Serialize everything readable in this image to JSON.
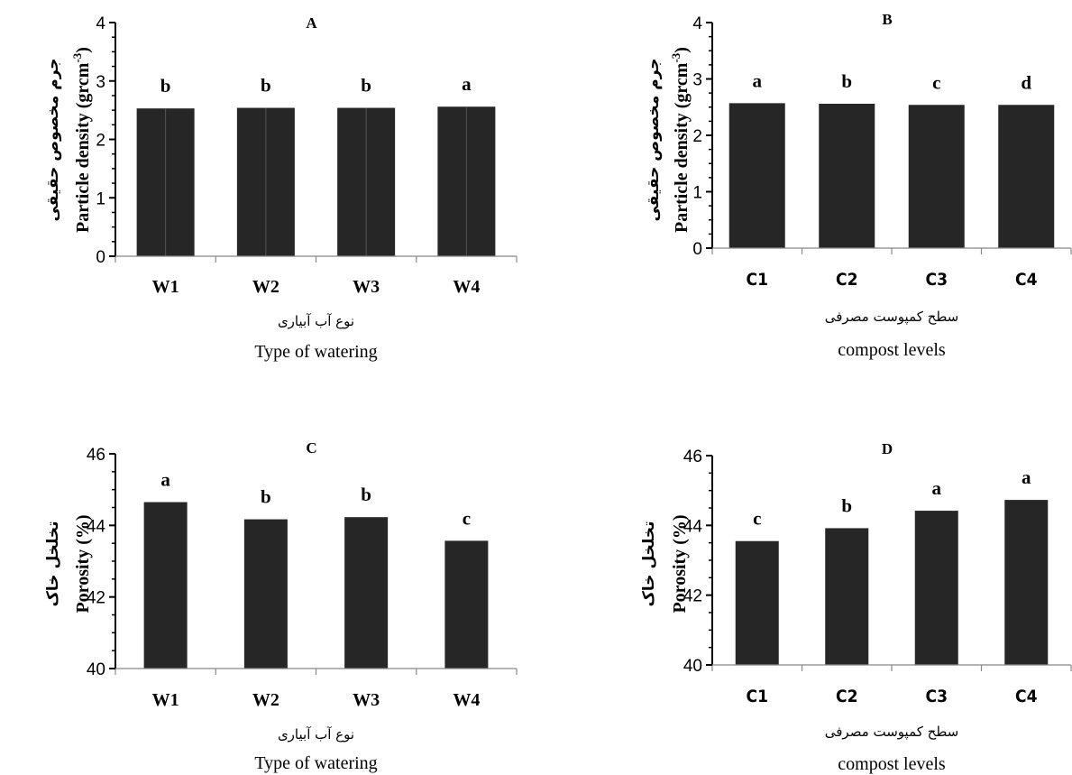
{
  "chart_data": [
    {
      "type": "bar",
      "title": "A",
      "categories": [
        "W1",
        "W2",
        "W3",
        "W4"
      ],
      "values": [
        2.53,
        2.54,
        2.54,
        2.56
      ],
      "letters": [
        "b",
        "b",
        "b",
        "a"
      ],
      "ylim": [
        0,
        4
      ],
      "yticks": [
        0,
        1,
        2,
        3,
        4
      ],
      "ylabel_fa": "جرم مخصوص حقیقی",
      "ylabel_en": "Particle density (grcm",
      "ylabel_sup": "-3",
      "ylabel_end": ")",
      "xlabel_fa": "نوع آب آبیاری",
      "xlabel_en": "Type of watering",
      "bar_color": "#262626"
    },
    {
      "type": "bar",
      "title": "B",
      "categories": [
        "C1",
        "C2",
        "C3",
        "C4"
      ],
      "values": [
        2.57,
        2.56,
        2.54,
        2.54
      ],
      "letters": [
        "a",
        "b",
        "c",
        "d"
      ],
      "ylim": [
        0,
        4
      ],
      "yticks": [
        0,
        1,
        2,
        3,
        4
      ],
      "ylabel_fa": "جرم مخصوص حقیقی",
      "ylabel_en": "Particle density (grcm",
      "ylabel_sup": "-3",
      "ylabel_end": ")",
      "xlabel_fa": "سطح کمپوست مصرفی",
      "xlabel_en": "compost levels",
      "bar_color": "#262626"
    },
    {
      "type": "bar",
      "title": "C",
      "categories": [
        "W1",
        "W2",
        "W3",
        "W4"
      ],
      "values": [
        44.65,
        44.17,
        44.23,
        43.57
      ],
      "letters": [
        "a",
        "b",
        "b",
        "c"
      ],
      "ylim": [
        40,
        46
      ],
      "yticks": [
        40,
        42,
        44,
        46
      ],
      "ylabel_fa": "تخلخل خاک",
      "ylabel_en": "Porosity (%)",
      "xlabel_fa": "نوع آب آبیاری",
      "xlabel_en": "Type of watering",
      "bar_color": "#262626"
    },
    {
      "type": "bar",
      "title": "D",
      "categories": [
        "C1",
        "C2",
        "C3",
        "C4"
      ],
      "values": [
        43.55,
        43.92,
        44.42,
        44.73
      ],
      "letters": [
        "c",
        "b",
        "a",
        "a"
      ],
      "ylim": [
        40,
        46
      ],
      "yticks": [
        40,
        42,
        44,
        46
      ],
      "ylabel_fa": "تخلخل خاک",
      "ylabel_en": "Porosity (%)",
      "xlabel_fa": "سطح کمپوست مصرفی",
      "xlabel_en": "compost levels",
      "bar_color": "#262626"
    }
  ]
}
